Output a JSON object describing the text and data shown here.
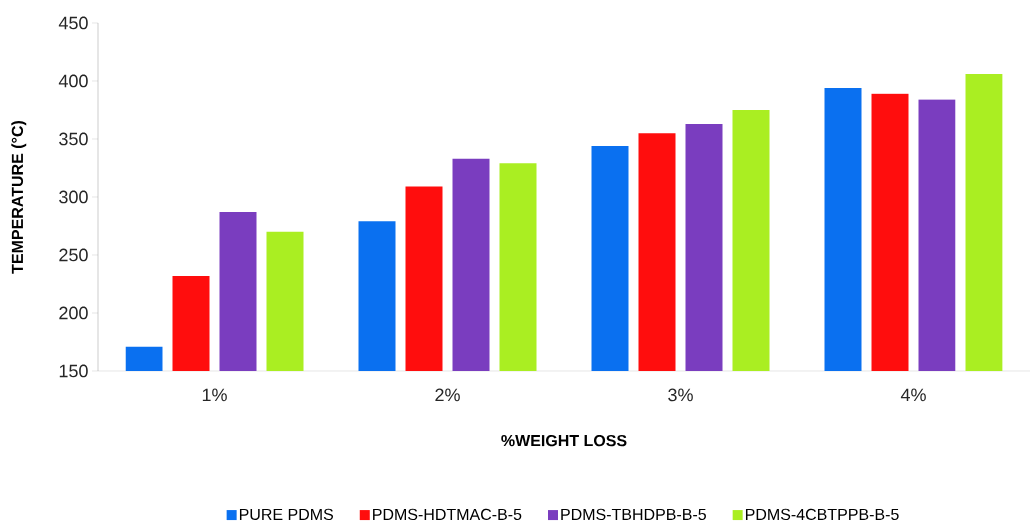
{
  "chart_data": {
    "type": "bar",
    "xlabel": "%WEIGHT LOSS",
    "ylabel": "TEMPERATURE (°C)",
    "categories": [
      "1%",
      "2%",
      "3%",
      "4%"
    ],
    "series": [
      {
        "name": "PURE PDMS",
        "color": "#0a70f0",
        "values": [
          171,
          279,
          344,
          394
        ]
      },
      {
        "name": "PDMS-HDTMAC-B-5",
        "color": "#ff0d0d",
        "values": [
          232,
          309,
          355,
          389
        ]
      },
      {
        "name": "PDMS-TBHDPB-B-5",
        "color": "#7a3dbf",
        "values": [
          287,
          333,
          363,
          384
        ]
      },
      {
        "name": "PDMS-4CBTPPB-B-5",
        "color": "#aaee22",
        "values": [
          270,
          329,
          375,
          406
        ]
      }
    ],
    "ylim": [
      150,
      450
    ],
    "yticks": [
      150,
      200,
      250,
      300,
      350,
      400,
      450
    ],
    "grid": false,
    "legend": "bottom"
  }
}
